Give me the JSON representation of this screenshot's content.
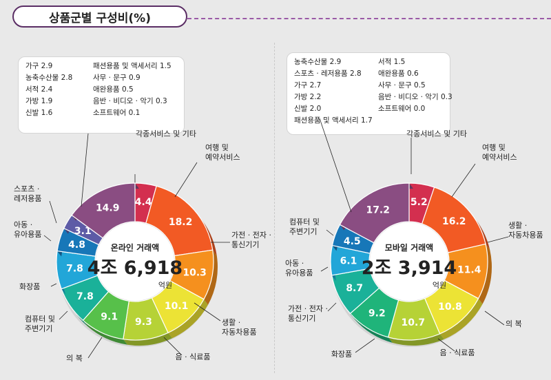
{
  "title": "상품군별 구성비(%)",
  "unit_label": "억원",
  "charts": [
    {
      "id": "online",
      "center_label": "온라인 거래액",
      "center_value": "4조 6,918",
      "small_items": [
        {
          "name": "가구",
          "value": "2.9"
        },
        {
          "name": "농축수산물",
          "value": "2.8"
        },
        {
          "name": "서적",
          "value": "2.4"
        },
        {
          "name": "가방",
          "value": "1.9"
        },
        {
          "name": "신발",
          "value": "1.6"
        },
        {
          "name": "패션용품 및 액세서리",
          "value": "1.5"
        },
        {
          "name": "사무 · 문구",
          "value": "0.9"
        },
        {
          "name": "애완용품",
          "value": "0.5"
        },
        {
          "name": "음반 · 비디오 · 악기",
          "value": "0.3"
        },
        {
          "name": "소프트웨어",
          "value": "0.1"
        }
      ],
      "segments": [
        {
          "label": "각종서비스 및 기타",
          "value": 4.4,
          "color": "#d32f4f"
        },
        {
          "label": "여행 및 예약서비스",
          "value": 18.2,
          "color": "#f25a24"
        },
        {
          "label": "가전 · 전자 · 통신기기",
          "value": 10.3,
          "color": "#f5901e"
        },
        {
          "label": "생활 · 자동차용품",
          "value": 10.1,
          "color": "#ece335"
        },
        {
          "label": "음 · 식료품",
          "value": 9.3,
          "color": "#b6d236"
        },
        {
          "label": "의 복",
          "value": 9.1,
          "color": "#57c04a"
        },
        {
          "label": "컴퓨터 및 주변기기",
          "value": 7.8,
          "color": "#1ab199"
        },
        {
          "label": "화장품",
          "value": 7.8,
          "color": "#22a6d8"
        },
        {
          "label": "아동 · 유아용품",
          "value": 4.8,
          "color": "#1777b8"
        },
        {
          "label": "스포츠 · 레저용품",
          "value": 3.1,
          "color": "#5d5ba6"
        },
        {
          "label": "",
          "value": 14.9,
          "color": "#8a4d82"
        }
      ]
    },
    {
      "id": "mobile",
      "center_label": "모바일 거래액",
      "center_value": "2조 3,914",
      "small_items": [
        {
          "name": "농축수산물",
          "value": "2.9"
        },
        {
          "name": "스포츠 · 레저용품",
          "value": "2.8"
        },
        {
          "name": "가구",
          "value": "2.7"
        },
        {
          "name": "가방",
          "value": "2.2"
        },
        {
          "name": "신발",
          "value": "2.0"
        },
        {
          "name": "패션용품 및 액세서리",
          "value": "1.7"
        },
        {
          "name": "서적",
          "value": "1.5"
        },
        {
          "name": "애완용품",
          "value": "0.6"
        },
        {
          "name": "사무 · 문구",
          "value": "0.5"
        },
        {
          "name": "음반 · 비디오 · 악기",
          "value": "0.3"
        },
        {
          "name": "소프트웨어",
          "value": "0.0"
        }
      ],
      "segments": [
        {
          "label": "각종서비스 및 기타",
          "value": 5.2,
          "color": "#d32f4f"
        },
        {
          "label": "여행 및 예약서비스",
          "value": 16.2,
          "color": "#f25a24"
        },
        {
          "label": "생활 · 자동차용품",
          "value": 11.4,
          "color": "#f5901e"
        },
        {
          "label": "의 복",
          "value": 10.8,
          "color": "#ece335"
        },
        {
          "label": "음 · 식료품",
          "value": 10.7,
          "color": "#b6d236"
        },
        {
          "label": "화장품",
          "value": 9.2,
          "color": "#1fb47a"
        },
        {
          "label": "가전 · 전자 · 통신기기",
          "value": 8.7,
          "color": "#1ab199"
        },
        {
          "label": "아동 · 유아용품",
          "value": 6.1,
          "color": "#22a6d8"
        },
        {
          "label": "컴퓨터 및 주변기기",
          "value": 4.5,
          "color": "#1777b8"
        },
        {
          "label": "",
          "value": 17.2,
          "color": "#8a4d82"
        }
      ]
    }
  ],
  "chart_data": [
    {
      "type": "pie",
      "title": "온라인 거래액",
      "categories": [
        "각종서비스 및 기타",
        "여행 및 예약서비스",
        "가전 · 전자 · 통신기기",
        "생활 · 자동차용품",
        "음 · 식료품",
        "의 복",
        "컴퓨터 및 주변기기",
        "화장품",
        "아동 · 유아용품",
        "스포츠 · 레저용품",
        "",
        "가구",
        "농축수산물",
        "서적",
        "가방",
        "신발",
        "패션용품 및 액세서리",
        "사무 · 문구",
        "애완용품",
        "음반 · 비디오 · 악기",
        "소프트웨어"
      ],
      "values": [
        4.4,
        18.2,
        10.3,
        10.1,
        9.3,
        9.1,
        7.8,
        7.8,
        4.8,
        3.1,
        14.9,
        2.9,
        2.8,
        2.4,
        1.9,
        1.6,
        1.5,
        0.9,
        0.5,
        0.3,
        0.1
      ]
    },
    {
      "type": "pie",
      "title": "모바일 거래액",
      "categories": [
        "각종서비스 및 기타",
        "여행 및 예약서비스",
        "생활 · 자동차용품",
        "의 복",
        "음 · 식료품",
        "화장품",
        "가전 · 전자 · 통신기기",
        "아동 · 유아용품",
        "컴퓨터 및 주변기기",
        "",
        "농축수산물",
        "스포츠 · 레저용품",
        "가구",
        "가방",
        "신발",
        "패션용품 및 액세서리",
        "서적",
        "애완용품",
        "사무 · 문구",
        "음반 · 비디오 · 악기",
        "소프트웨어"
      ],
      "values": [
        5.2,
        16.2,
        11.4,
        10.8,
        10.7,
        9.2,
        8.7,
        6.1,
        4.5,
        17.2,
        2.9,
        2.8,
        2.7,
        2.2,
        2.0,
        1.7,
        1.5,
        0.6,
        0.5,
        0.3,
        0.0
      ]
    }
  ]
}
